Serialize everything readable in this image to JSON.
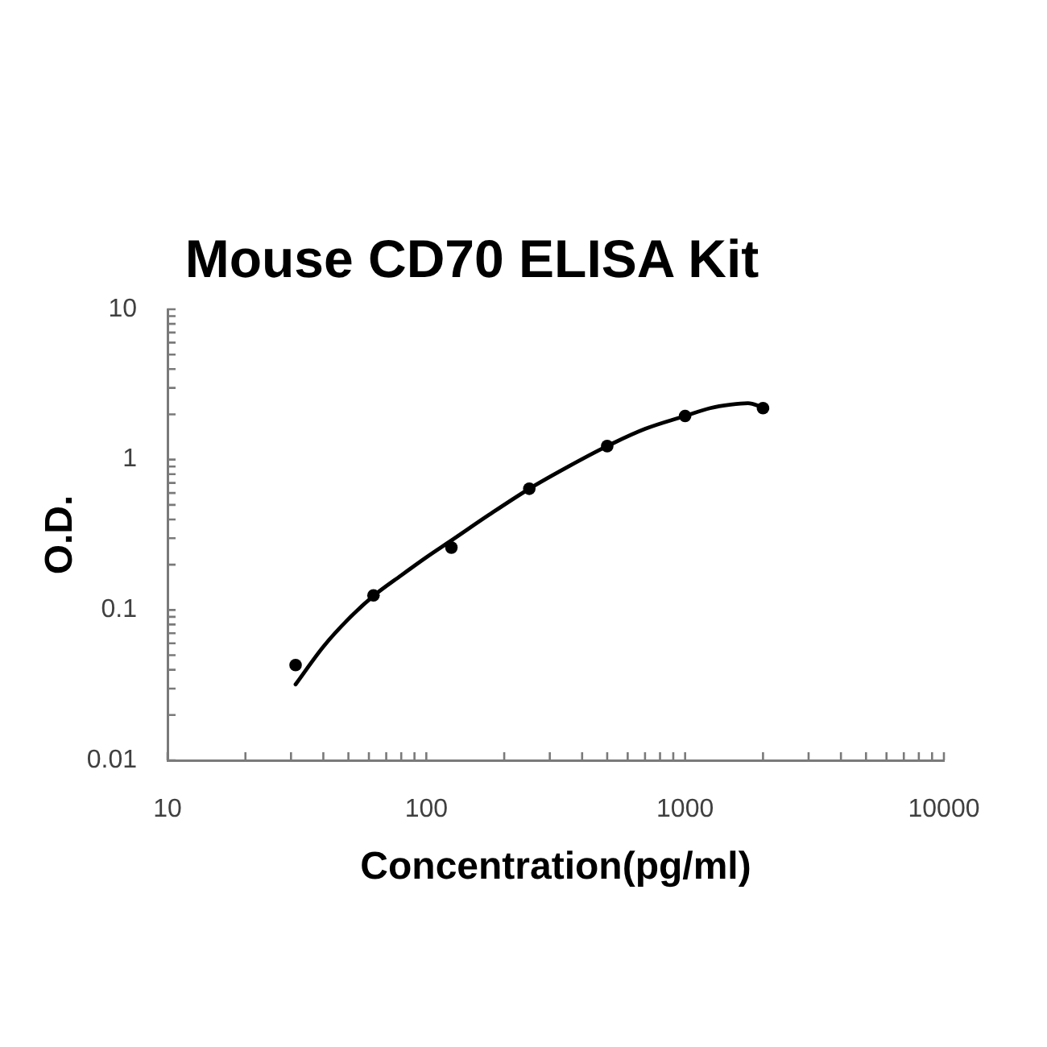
{
  "chart_data": {
    "type": "scatter",
    "title": "Mouse CD70 ELISA Kit",
    "xlabel": "Concentration(pg/ml)",
    "ylabel": "O.D.",
    "log": "xy",
    "grid": false,
    "legend": false,
    "xlim": [
      10,
      10000
    ],
    "ylim": [
      0.01,
      10
    ],
    "xticks": [
      10,
      {
        "value": 20,
        "label": null
      },
      {
        "value": 30,
        "label": null
      },
      {
        "value": 40,
        "label": null
      },
      {
        "value": 50,
        "label": null
      },
      {
        "value": 60,
        "label": null
      },
      {
        "value": 70,
        "label": null
      },
      {
        "value": 80,
        "label": null
      },
      {
        "value": 90,
        "label": null
      },
      100,
      {
        "value": 200,
        "label": null
      },
      {
        "value": 300,
        "label": null
      },
      {
        "value": 400,
        "label": null
      },
      {
        "value": 500,
        "label": null
      },
      {
        "value": 600,
        "label": null
      },
      {
        "value": 700,
        "label": null
      },
      {
        "value": 800,
        "label": null
      },
      {
        "value": 900,
        "label": null
      },
      1000,
      {
        "value": 2000,
        "label": null
      },
      {
        "value": 3000,
        "label": null
      },
      {
        "value": 4000,
        "label": null
      },
      {
        "value": 5000,
        "label": null
      },
      {
        "value": 6000,
        "label": null
      },
      {
        "value": 7000,
        "label": null
      },
      {
        "value": 8000,
        "label": null
      },
      {
        "value": 9000,
        "label": null
      },
      10000
    ],
    "yticks": [
      0.01,
      {
        "value": 0.02,
        "label": null
      },
      {
        "value": 0.03,
        "label": null
      },
      {
        "value": 0.04,
        "label": null
      },
      {
        "value": 0.05,
        "label": null
      },
      {
        "value": 0.06,
        "label": null
      },
      {
        "value": 0.07,
        "label": null
      },
      {
        "value": 0.08,
        "label": null
      },
      {
        "value": 0.09,
        "label": null
      },
      0.1,
      {
        "value": 0.2,
        "label": null
      },
      {
        "value": 0.3,
        "label": null
      },
      {
        "value": 0.4,
        "label": null
      },
      {
        "value": 0.5,
        "label": null
      },
      {
        "value": 0.6,
        "label": null
      },
      {
        "value": 0.7,
        "label": null
      },
      {
        "value": 0.8,
        "label": null
      },
      {
        "value": 0.9,
        "label": null
      },
      1,
      {
        "value": 2,
        "label": null
      },
      {
        "value": 3,
        "label": null
      },
      {
        "value": 4,
        "label": null
      },
      {
        "value": 5,
        "label": null
      },
      {
        "value": 6,
        "label": null
      },
      {
        "value": 7,
        "label": null
      },
      {
        "value": 8,
        "label": null
      },
      {
        "value": 9,
        "label": null
      },
      10
    ],
    "series": [
      {
        "type": "scatter",
        "color": "#000000",
        "marker": "circle",
        "x": [
          31.25,
          62.5,
          125,
          250,
          500,
          1000,
          2000
        ],
        "values": [
          0.043,
          0.125,
          0.26,
          0.64,
          1.23,
          1.95,
          2.2
        ]
      },
      {
        "type": "line",
        "color": "#000000",
        "marker": "none",
        "line_style": "solid",
        "x": [
          31.25,
          40,
          50,
          62.5,
          80,
          100,
          125,
          175,
          250,
          350,
          500,
          700,
          1000,
          1250,
          1500,
          1750,
          2000
        ],
        "values": [
          0.032,
          0.057,
          0.087,
          0.124,
          0.17,
          0.224,
          0.29,
          0.43,
          0.64,
          0.89,
          1.23,
          1.6,
          1.95,
          2.2,
          2.32,
          2.37,
          2.22
        ]
      }
    ]
  }
}
